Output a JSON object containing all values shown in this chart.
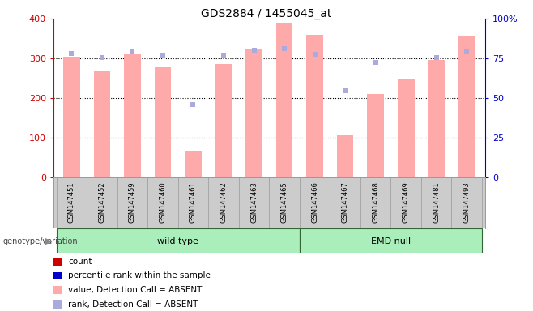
{
  "title": "GDS2884 / 1455045_at",
  "samples": [
    "GSM147451",
    "GSM147452",
    "GSM147459",
    "GSM147460",
    "GSM147461",
    "GSM147462",
    "GSM147463",
    "GSM147465",
    "GSM147466",
    "GSM147467",
    "GSM147468",
    "GSM147469",
    "GSM147481",
    "GSM147493"
  ],
  "absent_value_bars": [
    305,
    268,
    310,
    278,
    65,
    285,
    325,
    390,
    360,
    105,
    210,
    248,
    295,
    358
  ],
  "absent_rank_dots": [
    78,
    75.5,
    79,
    77,
    46,
    76.5,
    80,
    81,
    77.5,
    54.5,
    72.5,
    null,
    75.5,
    79
  ],
  "groups": [
    {
      "label": "wild type",
      "start": 0,
      "end": 8
    },
    {
      "label": "EMD null",
      "start": 8,
      "end": 14
    }
  ],
  "ylim_left": [
    0,
    400
  ],
  "ylim_right": [
    0,
    100
  ],
  "yticks_left": [
    0,
    100,
    200,
    300,
    400
  ],
  "yticks_right": [
    0,
    25,
    50,
    75,
    100
  ],
  "yticklabels_right": [
    "0",
    "25",
    "50",
    "75",
    "100%"
  ],
  "left_axis_color": "#cc0000",
  "right_axis_color": "#0000cc",
  "bar_color_absent": "#ffaaaa",
  "dot_color_absent": "#aaaadd",
  "group_color": "#aaeebb",
  "group_border_color": "#336633",
  "bg_color": "#ffffff",
  "grid_color": "#000000",
  "legend_items": [
    {
      "label": "count",
      "color": "#cc0000"
    },
    {
      "label": "percentile rank within the sample",
      "color": "#0000cc"
    },
    {
      "label": "value, Detection Call = ABSENT",
      "color": "#ffaaaa"
    },
    {
      "label": "rank, Detection Call = ABSENT",
      "color": "#aaaadd"
    }
  ]
}
